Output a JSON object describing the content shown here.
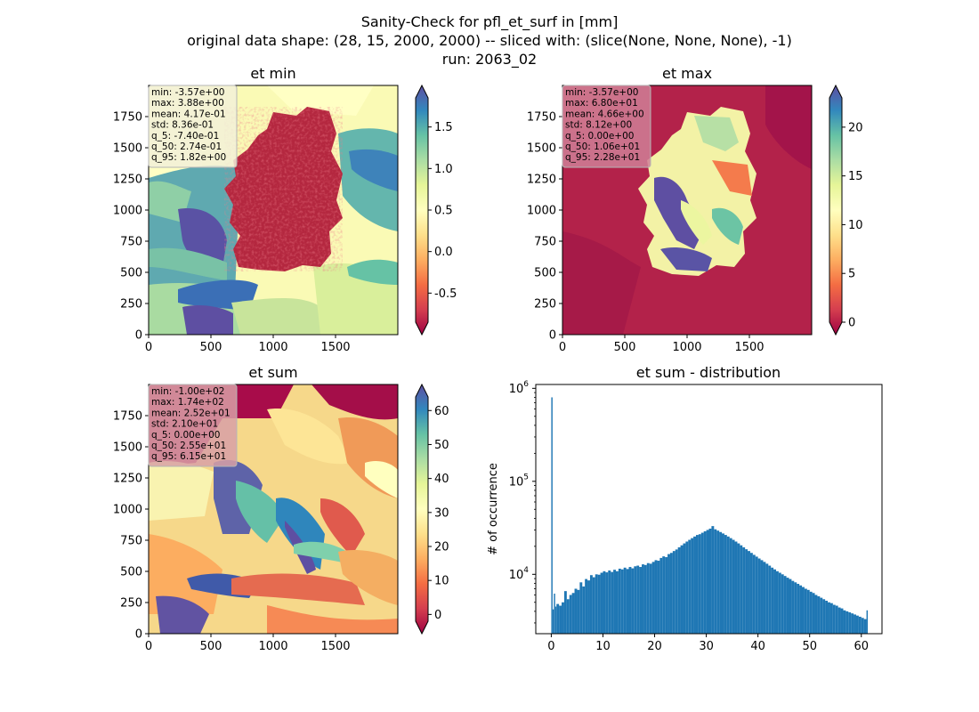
{
  "figure": {
    "title_lines": [
      "Sanity-Check for pfl_et_surf in [mm]",
      "original data shape: (28, 15, 2000, 2000) -- sliced with: (slice(None, None, None), -1)",
      "run: 2063_02"
    ]
  },
  "chart_data": [
    {
      "type": "heatmap",
      "title": "et min",
      "xlim": [
        0,
        2000
      ],
      "ylim": [
        0,
        2000
      ],
      "x_ticks": [
        "0",
        "500",
        "1000",
        "1500"
      ],
      "y_ticks": [
        "0",
        "250",
        "500",
        "750",
        "1000",
        "1250",
        "1500",
        "1750"
      ],
      "colormap": "Spectral",
      "colorbar": {
        "range": [
          -0.85,
          1.85
        ],
        "ticks": [
          "-0.5",
          "0.0",
          "0.5",
          "1.0",
          "1.5"
        ],
        "extend": "both"
      },
      "stats": [
        "min: -3.57e+00",
        "max: 3.88e+00",
        "mean: 4.17e-01",
        "std: 8.36e-01",
        "q_5: -7.40e-01",
        "q_50: 2.74e-01",
        "q_95: 1.82e+00"
      ],
      "stats_box_color": "#f2f0d8"
    },
    {
      "type": "heatmap",
      "title": "et max",
      "xlim": [
        0,
        2000
      ],
      "ylim": [
        0,
        2000
      ],
      "x_ticks": [
        "0",
        "500",
        "1000",
        "1500"
      ],
      "y_ticks": [
        "0",
        "250",
        "500",
        "750",
        "1000",
        "1250",
        "1500",
        "1750"
      ],
      "colormap": "Spectral",
      "colorbar": {
        "range": [
          0,
          23
        ],
        "ticks": [
          "0",
          "5",
          "10",
          "15",
          "20"
        ],
        "extend": "both"
      },
      "stats": [
        "min: -3.57e+00",
        "max: 6.80e+01",
        "mean: 4.66e+00",
        "std: 8.12e+00",
        "q_5: 0.00e+00",
        "q_50: 1.06e+01",
        "q_95: 2.28e+01"
      ],
      "stats_box_color": "#cf7f96"
    },
    {
      "type": "heatmap",
      "title": "et sum",
      "xlim": [
        0,
        2000
      ],
      "ylim": [
        0,
        2000
      ],
      "x_ticks": [
        "0",
        "500",
        "1000",
        "1500"
      ],
      "y_ticks": [
        "0",
        "250",
        "500",
        "750",
        "1000",
        "1250",
        "1500",
        "1750"
      ],
      "colormap": "Spectral",
      "colorbar": {
        "range": [
          -2,
          64
        ],
        "ticks": [
          "0",
          "10",
          "20",
          "30",
          "40",
          "50",
          "60"
        ],
        "extend": "both"
      },
      "stats": [
        "min: -1.00e+02",
        "max: 1.74e+02",
        "mean: 2.52e+01",
        "std: 2.10e+01",
        "q_5: 0.00e+00",
        "q_50: 2.55e+01",
        "q_95: 6.15e+01"
      ],
      "stats_box_color": "#d8a0a6"
    },
    {
      "type": "bar",
      "title": "et sum - distribution",
      "ylabel": "# of occurrence",
      "yscale": "log",
      "xlim": [
        -3,
        64
      ],
      "ylim": [
        2300,
        1100000
      ],
      "x_ticks": [
        0,
        10,
        20,
        30,
        40,
        50,
        60
      ],
      "y_ticks": [
        {
          "value": 10000,
          "base": "10",
          "exp": "4"
        },
        {
          "value": 100000,
          "base": "10",
          "exp": "5"
        },
        {
          "value": 1000000,
          "base": "10",
          "exp": "6"
        }
      ],
      "bin_width": 0.25,
      "bars": [
        {
          "x": 0.0,
          "count": 800000
        },
        {
          "x": 0.25,
          "count": 4200
        },
        {
          "x": 0.5,
          "count": 6200
        },
        {
          "x": 0.75,
          "count": 4500
        },
        {
          "x": 1.0,
          "count": 4800
        },
        {
          "x": 1.5,
          "count": 4600
        },
        {
          "x": 2.0,
          "count": 5000
        },
        {
          "x": 2.5,
          "count": 6600
        },
        {
          "x": 3.0,
          "count": 5400
        },
        {
          "x": 3.5,
          "count": 6000
        },
        {
          "x": 4.0,
          "count": 6300
        },
        {
          "x": 4.5,
          "count": 7000
        },
        {
          "x": 5.0,
          "count": 6800
        },
        {
          "x": 5.5,
          "count": 8200
        },
        {
          "x": 6.0,
          "count": 7400
        },
        {
          "x": 6.5,
          "count": 8900
        },
        {
          "x": 7.0,
          "count": 8600
        },
        {
          "x": 7.5,
          "count": 9800
        },
        {
          "x": 8.0,
          "count": 9300
        },
        {
          "x": 8.5,
          "count": 10000
        },
        {
          "x": 9.0,
          "count": 9900
        },
        {
          "x": 9.5,
          "count": 10400
        },
        {
          "x": 10.0,
          "count": 10800
        },
        {
          "x": 10.5,
          "count": 10500
        },
        {
          "x": 11.0,
          "count": 11000
        },
        {
          "x": 11.5,
          "count": 10600
        },
        {
          "x": 12.0,
          "count": 11200
        },
        {
          "x": 12.5,
          "count": 10800
        },
        {
          "x": 13.0,
          "count": 11500
        },
        {
          "x": 13.5,
          "count": 11300
        },
        {
          "x": 14.0,
          "count": 11800
        },
        {
          "x": 14.5,
          "count": 11400
        },
        {
          "x": 15.0,
          "count": 12000
        },
        {
          "x": 15.5,
          "count": 11600
        },
        {
          "x": 16.0,
          "count": 12200
        },
        {
          "x": 16.5,
          "count": 12400
        },
        {
          "x": 17.0,
          "count": 12000
        },
        {
          "x": 17.5,
          "count": 12800
        },
        {
          "x": 18.0,
          "count": 12600
        },
        {
          "x": 18.5,
          "count": 13200
        },
        {
          "x": 19.0,
          "count": 13000
        },
        {
          "x": 19.5,
          "count": 13600
        },
        {
          "x": 20.0,
          "count": 14200
        },
        {
          "x": 20.5,
          "count": 14000
        },
        {
          "x": 21.0,
          "count": 15000
        },
        {
          "x": 21.5,
          "count": 15600
        },
        {
          "x": 22.0,
          "count": 15300
        },
        {
          "x": 22.5,
          "count": 16500
        },
        {
          "x": 23.0,
          "count": 17000
        },
        {
          "x": 23.5,
          "count": 17800
        },
        {
          "x": 24.0,
          "count": 18500
        },
        {
          "x": 24.5,
          "count": 19500
        },
        {
          "x": 25.0,
          "count": 20500
        },
        {
          "x": 25.5,
          "count": 21500
        },
        {
          "x": 26.0,
          "count": 22500
        },
        {
          "x": 26.5,
          "count": 23500
        },
        {
          "x": 27.0,
          "count": 24500
        },
        {
          "x": 27.5,
          "count": 25500
        },
        {
          "x": 28.0,
          "count": 26500
        },
        {
          "x": 28.5,
          "count": 27000
        },
        {
          "x": 29.0,
          "count": 28000
        },
        {
          "x": 29.5,
          "count": 29000
        },
        {
          "x": 30.0,
          "count": 30000
        },
        {
          "x": 30.5,
          "count": 31000
        },
        {
          "x": 31.0,
          "count": 33000
        },
        {
          "x": 31.5,
          "count": 30500
        },
        {
          "x": 32.0,
          "count": 29500
        },
        {
          "x": 32.5,
          "count": 28500
        },
        {
          "x": 33.0,
          "count": 27500
        },
        {
          "x": 33.5,
          "count": 26500
        },
        {
          "x": 34.0,
          "count": 25500
        },
        {
          "x": 34.5,
          "count": 24500
        },
        {
          "x": 35.0,
          "count": 23500
        },
        {
          "x": 35.5,
          "count": 22500
        },
        {
          "x": 36.0,
          "count": 21500
        },
        {
          "x": 36.5,
          "count": 20500
        },
        {
          "x": 37.0,
          "count": 19500
        },
        {
          "x": 37.5,
          "count": 18600
        },
        {
          "x": 38.0,
          "count": 17800
        },
        {
          "x": 38.5,
          "count": 17000
        },
        {
          "x": 39.0,
          "count": 16200
        },
        {
          "x": 39.5,
          "count": 15500
        },
        {
          "x": 40.0,
          "count": 14800
        },
        {
          "x": 40.5,
          "count": 14200
        },
        {
          "x": 41.0,
          "count": 13600
        },
        {
          "x": 41.5,
          "count": 13000
        },
        {
          "x": 42.0,
          "count": 12400
        },
        {
          "x": 42.5,
          "count": 11800
        },
        {
          "x": 43.0,
          "count": 11300
        },
        {
          "x": 43.5,
          "count": 10800
        },
        {
          "x": 44.0,
          "count": 10400
        },
        {
          "x": 44.5,
          "count": 10000
        },
        {
          "x": 45.0,
          "count": 9600
        },
        {
          "x": 45.5,
          "count": 9200
        },
        {
          "x": 46.0,
          "count": 8900
        },
        {
          "x": 46.5,
          "count": 8500
        },
        {
          "x": 47.0,
          "count": 8200
        },
        {
          "x": 47.5,
          "count": 7900
        },
        {
          "x": 48.0,
          "count": 7600
        },
        {
          "x": 48.5,
          "count": 7300
        },
        {
          "x": 49.0,
          "count": 7000
        },
        {
          "x": 49.5,
          "count": 6800
        },
        {
          "x": 50.0,
          "count": 6500
        },
        {
          "x": 50.5,
          "count": 6300
        },
        {
          "x": 51.0,
          "count": 6000
        },
        {
          "x": 51.5,
          "count": 5800
        },
        {
          "x": 52.0,
          "count": 5600
        },
        {
          "x": 52.5,
          "count": 5400
        },
        {
          "x": 53.0,
          "count": 5200
        },
        {
          "x": 53.5,
          "count": 5000
        },
        {
          "x": 54.0,
          "count": 4900
        },
        {
          "x": 54.5,
          "count": 4700
        },
        {
          "x": 55.0,
          "count": 4600
        },
        {
          "x": 55.5,
          "count": 4400
        },
        {
          "x": 56.0,
          "count": 4300
        },
        {
          "x": 56.5,
          "count": 4100
        },
        {
          "x": 57.0,
          "count": 4000
        },
        {
          "x": 57.5,
          "count": 3900
        },
        {
          "x": 58.0,
          "count": 3800
        },
        {
          "x": 58.5,
          "count": 3700
        },
        {
          "x": 59.0,
          "count": 3600
        },
        {
          "x": 59.5,
          "count": 3500
        },
        {
          "x": 60.0,
          "count": 3400
        },
        {
          "x": 60.5,
          "count": 3300
        },
        {
          "x": 61.0,
          "count": 4100
        }
      ],
      "bar_color": "#1f77b4"
    }
  ]
}
